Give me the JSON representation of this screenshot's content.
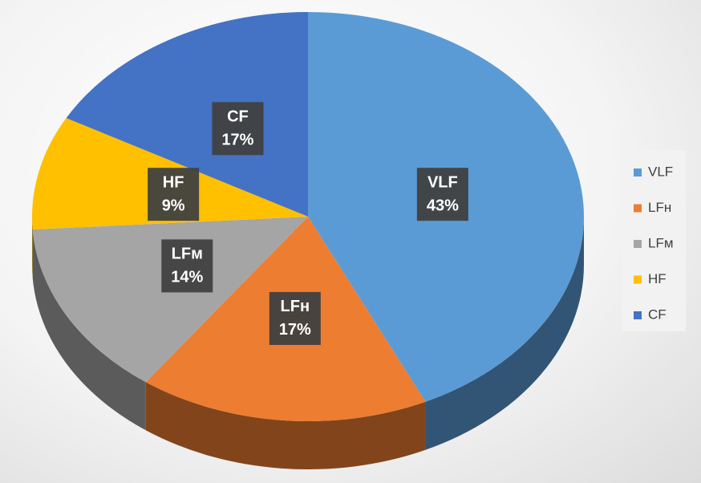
{
  "chart_data": {
    "type": "pie",
    "categories": [
      "VLF",
      "LFн",
      "LFм",
      "HF",
      "CF"
    ],
    "values": [
      43,
      17,
      14,
      9,
      17
    ],
    "value_labels": [
      "43%",
      "17%",
      "14%",
      "9%",
      "17%"
    ],
    "colors": [
      "#5b9bd5",
      "#ed7d31",
      "#a5a5a5",
      "#ffc000",
      "#4472c4"
    ],
    "legend": "right"
  }
}
